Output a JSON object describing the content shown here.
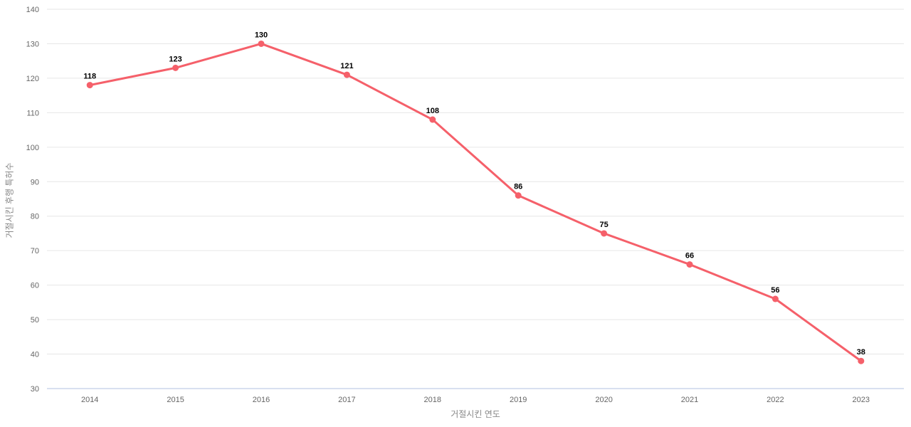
{
  "chart_data": {
    "type": "line",
    "categories": [
      "2014",
      "2015",
      "2016",
      "2017",
      "2018",
      "2019",
      "2020",
      "2021",
      "2022",
      "2023"
    ],
    "values": [
      118,
      123,
      130,
      121,
      108,
      86,
      75,
      66,
      56,
      38
    ],
    "series": [
      {
        "name": "거절시킨 후행 특허수",
        "values": [
          118,
          123,
          130,
          121,
          108,
          86,
          75,
          66,
          56,
          38
        ]
      }
    ],
    "title": "",
    "xlabel": "거절시킨 연도",
    "ylabel": "거절시킨 후행 특허수",
    "ylim": [
      30,
      140
    ],
    "ytick_step": 10,
    "yticks": [
      30,
      40,
      50,
      60,
      70,
      80,
      90,
      100,
      110,
      120,
      130,
      140
    ],
    "grid": true,
    "legend_position": "none",
    "data_labels_visible": true,
    "colors": {
      "line": "#f5606a",
      "marker": "#f5606a",
      "grid": "#e6e6e6",
      "axis_line": "#ccd6eb",
      "tick_label": "#666666",
      "axis_title": "#888888",
      "data_label": "#000000",
      "background": "#ffffff"
    }
  }
}
